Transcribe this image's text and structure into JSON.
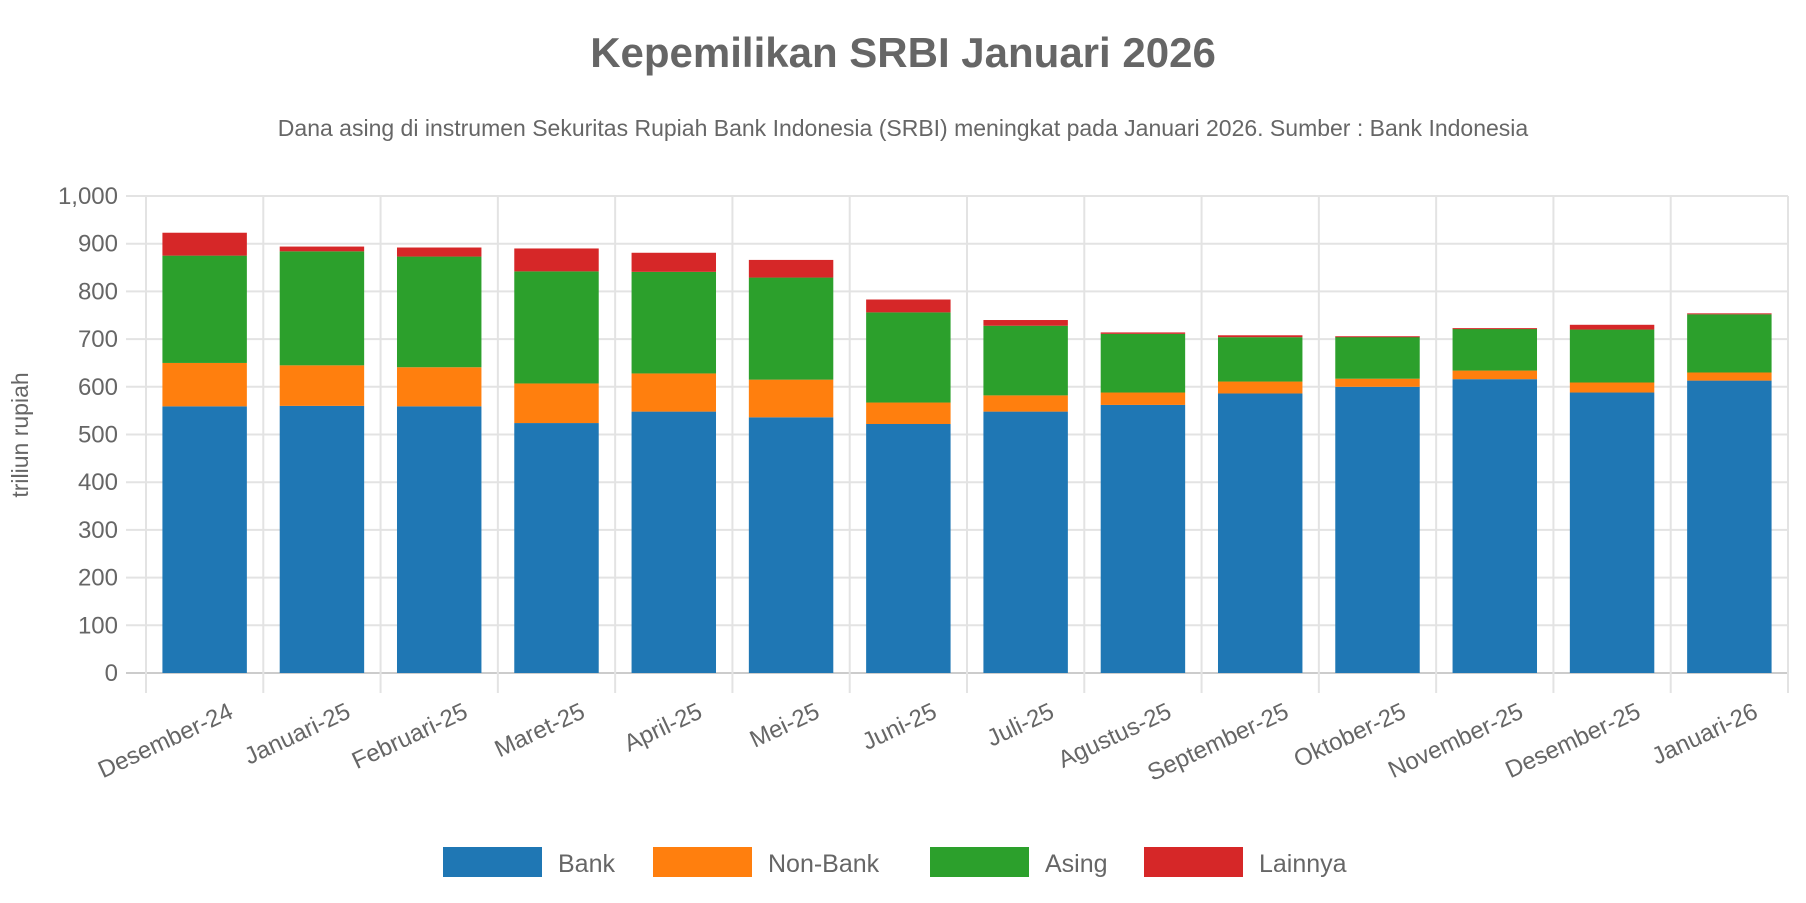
{
  "chart_data": {
    "type": "bar",
    "stacked": true,
    "title": "Kepemilikan SRBI Januari 2026",
    "subtitle": "Dana asing di instrumen Sekuritas Rupiah Bank Indonesia (SRBI) meningkat pada Januari 2026. Sumber : Bank Indonesia",
    "xlabel": "",
    "ylabel": "triliun rupiah",
    "ylim": [
      0,
      1000
    ],
    "yticks": [
      "0",
      "100",
      "200",
      "300",
      "400",
      "500",
      "600",
      "700",
      "800",
      "900",
      "1,000"
    ],
    "grid": true,
    "legend_position": "bottom",
    "categories": [
      "Desember-24",
      "Januari-25",
      "Februari-25",
      "Maret-25",
      "April-25",
      "Mei-25",
      "Juni-25",
      "Juli-25",
      "Agustus-25",
      "September-25",
      "Oktober-25",
      "November-25",
      "Desember-25",
      "Januari-26"
    ],
    "series": [
      {
        "name": "Bank",
        "color": "#1f77b4",
        "values": [
          559,
          560,
          559,
          524,
          548,
          536,
          522,
          548,
          562,
          586,
          600,
          616,
          588,
          613
        ]
      },
      {
        "name": "Non-Bank",
        "color": "#ff7f0e",
        "values": [
          91,
          85,
          82,
          83,
          80,
          79,
          45,
          34,
          26,
          25,
          17,
          18,
          21,
          17
        ]
      },
      {
        "name": "Asing",
        "color": "#2ca02c",
        "values": [
          225,
          239,
          232,
          235,
          213,
          214,
          189,
          146,
          123,
          93,
          88,
          88,
          111,
          122
        ]
      },
      {
        "name": "Lainnya",
        "color": "#d62728",
        "values": [
          48,
          10,
          19,
          48,
          40,
          37,
          27,
          12,
          3,
          4,
          1,
          1,
          10,
          2
        ]
      }
    ]
  }
}
